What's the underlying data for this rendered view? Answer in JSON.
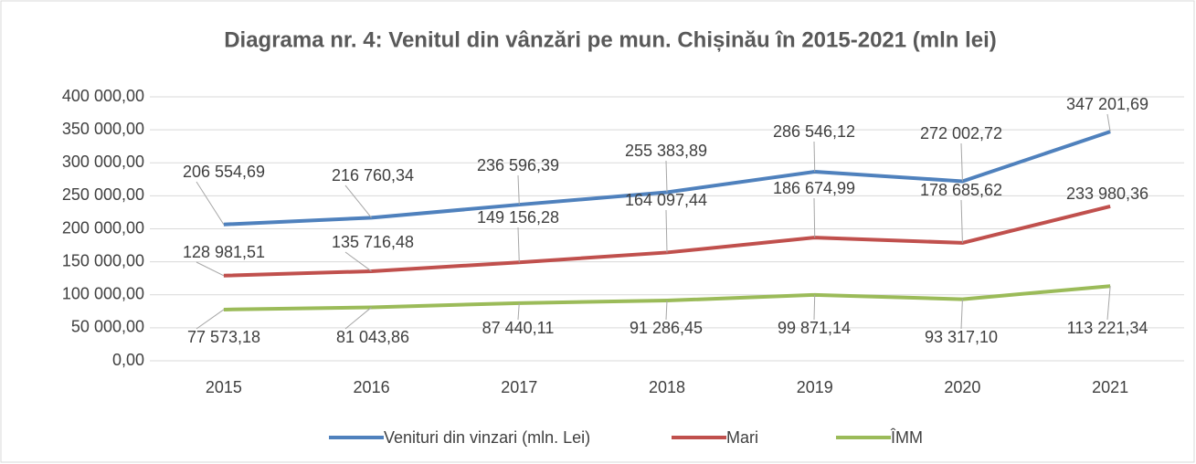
{
  "chart_data": {
    "type": "line",
    "title": "Diagrama nr. 4:  Venitul din vânzări pe mun. Chișinău în 2015-2021 (mln lei)",
    "categories": [
      "2015",
      "2016",
      "2017",
      "2018",
      "2019",
      "2020",
      "2021"
    ],
    "series": [
      {
        "name": "Venituri din vinzari (mln. Lei)",
        "color": "#4f81bd",
        "values": [
          206554.69,
          216760.34,
          236596.39,
          255383.89,
          286546.12,
          272002.72,
          347201.69
        ],
        "value_labels": [
          "206 554,69",
          "216 760,34",
          "236 596,39",
          "255 383,89",
          "286 546,12",
          "272 002,72",
          "347 201,69"
        ]
      },
      {
        "name": "Mari",
        "color": "#c0504d",
        "values": [
          128981.51,
          135716.48,
          149156.28,
          164097.44,
          186674.99,
          178685.62,
          233980.36
        ],
        "value_labels": [
          "128 981,51",
          "135 716,48",
          "149 156,28",
          "164 097,44",
          "186 674,99",
          "178 685,62",
          "233 980,36"
        ]
      },
      {
        "name": "ÎMM",
        "color": "#9bbb59",
        "values": [
          77573.18,
          81043.86,
          87440.11,
          91286.45,
          99871.14,
          93317.1,
          113221.34
        ],
        "value_labels": [
          "77 573,18",
          "81 043,86",
          "87 440,11",
          "91 286,45",
          "99 871,14",
          "93 317,10",
          "113 221,34"
        ]
      }
    ],
    "ylim": [
      0,
      400000
    ],
    "yticks": [
      {
        "value": 0,
        "label": "0,00"
      },
      {
        "value": 50000,
        "label": "50 000,00"
      },
      {
        "value": 100000,
        "label": "100 000,00"
      },
      {
        "value": 150000,
        "label": "150 000,00"
      },
      {
        "value": 200000,
        "label": "200 000,00"
      },
      {
        "value": 250000,
        "label": "250 000,00"
      },
      {
        "value": 300000,
        "label": "300 000,00"
      },
      {
        "value": 350000,
        "label": "350 000,00"
      },
      {
        "value": 400000,
        "label": "400 000,00"
      }
    ],
    "grid": true,
    "legend": "bottom"
  }
}
